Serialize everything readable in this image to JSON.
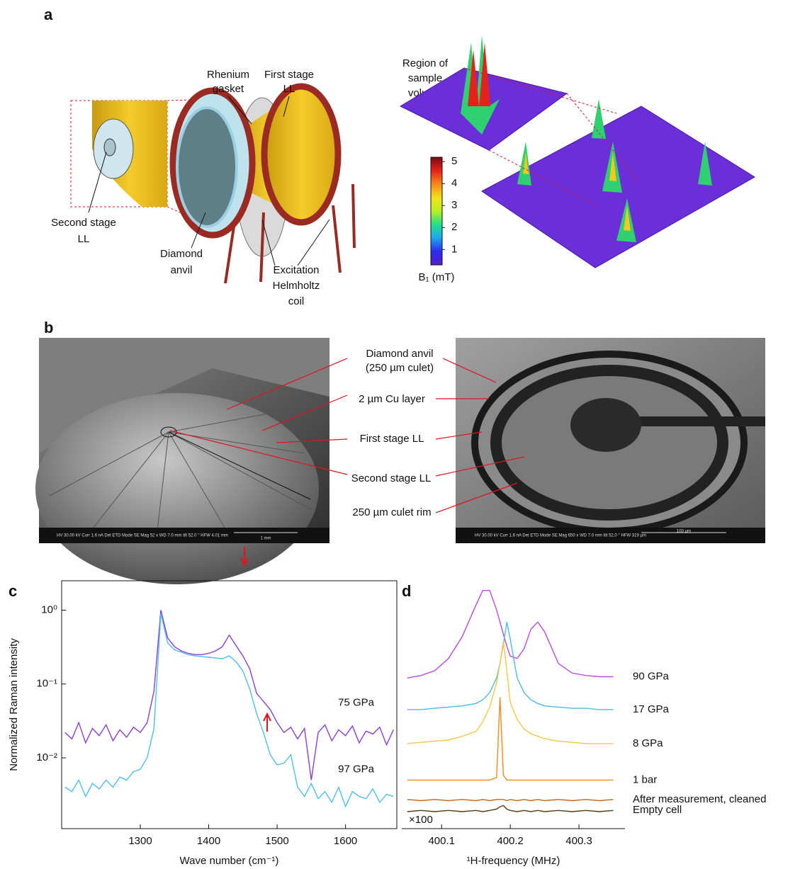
{
  "panel_labels": [
    "a",
    "b",
    "c",
    "d"
  ],
  "figure_a": {
    "region": [
      "Region of",
      "sample",
      "volume"
    ],
    "rhenium": [
      "Rhenium",
      "gasket"
    ],
    "first_stage": [
      "First stage",
      "LL"
    ],
    "second_stage": [
      "Second stage",
      "LL"
    ],
    "diamond_anvil": [
      "Diamond",
      "anvil"
    ],
    "excitation": [
      "Excitation",
      "Helmholtz",
      "coil"
    ],
    "colorbar": {
      "label": "B₁ (mT)",
      "lim": [
        0.3,
        5.2
      ],
      "ticks": [
        1,
        2,
        3,
        4,
        5
      ],
      "colors": [
        "#5a1fd0",
        "#2a2cf0",
        "#1aa8f0",
        "#22e08a",
        "#b8f020",
        "#f5e01a",
        "#f58a18",
        "#e8201a",
        "#7a0a12"
      ]
    }
  },
  "figure_b": {
    "diamond_anvil": [
      "Diamond anvil",
      "(250 µm culet)"
    ],
    "cu_layer": "2 µm Cu layer",
    "first_stage": "First stage LL",
    "second_stage": "Second stage LL",
    "culet_rim": "250 µm culet rim",
    "sem_left": {
      "info": "HV 30.00 kV  Curr 1.6 nA  Det ETD  Mode SE  Mag 52 x  WD 7.0 mm  tilt 52.0 °  HFW 4.01 mm",
      "scale": "1 mm"
    },
    "sem_right": {
      "info": "HV 30.00 kV  Curr 1.6 nA  Det ETD  Mode SE  Mag 650 x  WD 7.0 mm  tilt 52.0 °  HFW 319 µm",
      "scale": "100 µm"
    }
  },
  "chart_data": [
    {
      "type": "line",
      "x_label": "Wave number (cm⁻¹)",
      "y_label": "Normalized Raman intensity",
      "log_y": true,
      "axes_box": true,
      "xlim": [
        1185,
        1675
      ],
      "xticks": [
        1300,
        1400,
        1500,
        1600
      ],
      "ylim": [
        0.0011,
        2.5
      ],
      "yticks": [
        {
          "value": 1,
          "label": "10⁰"
        },
        {
          "value": 0.1,
          "label": "10⁻¹"
        },
        {
          "value": 0.01,
          "label": "10⁻²"
        }
      ],
      "x": [
        1190,
        1200,
        1210,
        1220,
        1230,
        1240,
        1250,
        1260,
        1270,
        1280,
        1290,
        1300,
        1310,
        1320,
        1330,
        1340,
        1350,
        1360,
        1370,
        1380,
        1390,
        1400,
        1410,
        1420,
        1430,
        1440,
        1450,
        1460,
        1470,
        1480,
        1490,
        1500,
        1510,
        1520,
        1530,
        1540,
        1550,
        1560,
        1570,
        1580,
        1590,
        1600,
        1610,
        1620,
        1630,
        1640,
        1650,
        1660,
        1670
      ],
      "series": [
        {
          "name": "75 GPa",
          "color": "#8a3fd6",
          "values": [
            0.022,
            0.018,
            0.03,
            0.016,
            0.025,
            0.02,
            0.028,
            0.017,
            0.024,
            0.019,
            0.026,
            0.022,
            0.03,
            0.08,
            1.0,
            0.42,
            0.32,
            0.28,
            0.26,
            0.25,
            0.25,
            0.26,
            0.28,
            0.32,
            0.46,
            0.33,
            0.24,
            0.16,
            0.075,
            0.058,
            0.045,
            0.03,
            0.022,
            0.026,
            0.018,
            0.025,
            0.005,
            0.022,
            0.028,
            0.017,
            0.024,
            0.02,
            0.027,
            0.016,
            0.023,
            0.021,
            0.026,
            0.015,
            0.024
          ]
        },
        {
          "name": "97 GPa",
          "color": "#4fbdf0",
          "values": [
            0.004,
            0.0035,
            0.005,
            0.003,
            0.0045,
            0.0038,
            0.005,
            0.004,
            0.0055,
            0.005,
            0.0065,
            0.007,
            0.01,
            0.025,
            0.9,
            0.36,
            0.29,
            0.27,
            0.25,
            0.24,
            0.235,
            0.23,
            0.225,
            0.22,
            0.24,
            0.2,
            0.15,
            0.085,
            0.04,
            0.022,
            0.011,
            0.008,
            0.0085,
            0.011,
            0.004,
            0.003,
            0.0045,
            0.0028,
            0.0035,
            0.0025,
            0.004,
            0.0022,
            0.0035,
            0.003,
            0.0028,
            0.0038,
            0.0025,
            0.0032,
            0.003
          ]
        }
      ]
    },
    {
      "type": "line",
      "x_label": "¹H-frequency (MHz)",
      "annotation": "×100",
      "log_y": false,
      "axes_box": false,
      "xlim": [
        400.042,
        400.367
      ],
      "xticks": [
        400.1,
        400.2,
        400.3
      ],
      "ylim": [
        0,
        102
      ],
      "x": [
        400.05,
        400.07,
        400.09,
        400.11,
        400.13,
        400.15,
        400.16,
        400.17,
        400.18,
        400.185,
        400.19,
        400.195,
        400.2,
        400.21,
        400.22,
        400.23,
        400.24,
        400.25,
        400.27,
        400.29,
        400.31,
        400.33,
        400.35
      ],
      "series": [
        {
          "name": "90 GPa",
          "color": "#b94be0",
          "values": [
            62,
            63,
            65,
            70,
            79,
            92,
            98,
            98,
            90,
            85,
            80,
            75,
            71,
            70,
            74,
            82,
            85,
            81,
            68,
            64,
            63,
            62.5,
            62.5
          ]
        },
        {
          "name": "17 GPa",
          "color": "#4dbbe8",
          "values": [
            49,
            49,
            49.5,
            50,
            50.5,
            51.5,
            53,
            56,
            62,
            68,
            76,
            85,
            78,
            62,
            56,
            53,
            51.5,
            50.5,
            50,
            49.5,
            49.5,
            49,
            49
          ]
        },
        {
          "name": "8 GPa",
          "color": "#f5c842",
          "values": [
            35,
            35.5,
            36,
            36.5,
            38,
            40,
            44,
            50,
            60,
            68,
            77,
            65,
            52,
            45,
            41,
            39,
            38,
            37,
            36,
            35.5,
            35,
            35,
            35
          ]
        },
        {
          "name": "1 bar",
          "color": "#f08a1c",
          "values": [
            20,
            20,
            20,
            20,
            20,
            20,
            20,
            20,
            21,
            54,
            22,
            20,
            20,
            20,
            20,
            20,
            20,
            20,
            20,
            20,
            20,
            20,
            20
          ]
        },
        {
          "name": "After measurement, cleaned",
          "color": "#c06a1a",
          "values": [
            12,
            11.5,
            12,
            11.5,
            12,
            11.5,
            12,
            11.5,
            12,
            12,
            12,
            11.5,
            12,
            11.5,
            12,
            11.5,
            12,
            11.5,
            12,
            11.5,
            12,
            11.5,
            12
          ]
        },
        {
          "name": "Empty cell",
          "color": "#5a3a10",
          "values": [
            7,
            7.5,
            7,
            7.5,
            7,
            7.5,
            7,
            7.5,
            8,
            9,
            9.5,
            8,
            7.5,
            7,
            7.5,
            7,
            7.5,
            7,
            7.5,
            7,
            7.5,
            7,
            7.5
          ]
        }
      ]
    }
  ]
}
